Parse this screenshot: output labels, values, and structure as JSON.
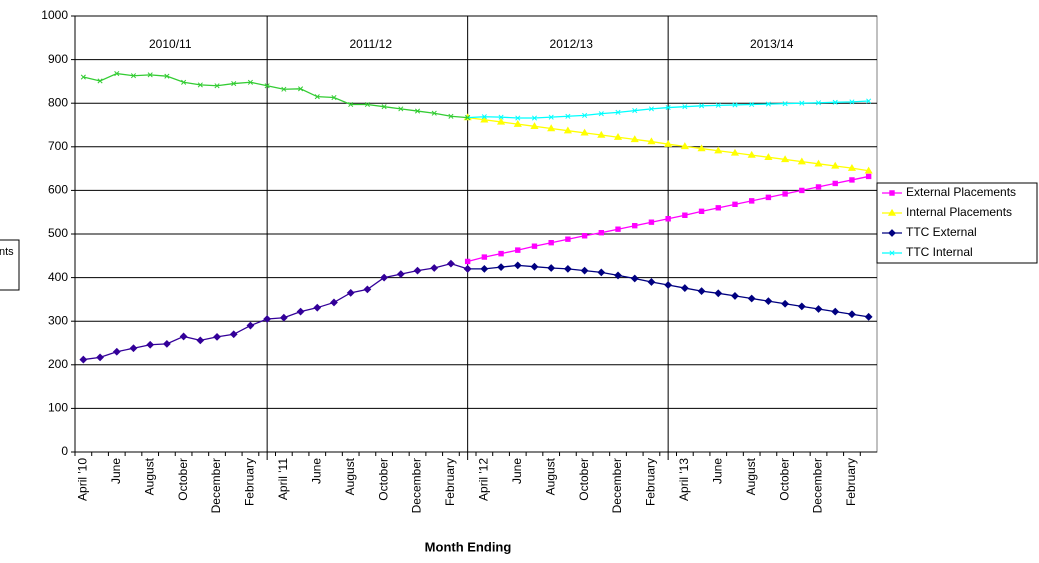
{
  "chart_data": {
    "type": "line",
    "x_label": "Month Ending",
    "categories": [
      "April '10",
      null,
      "June",
      null,
      "August",
      null,
      "October",
      null,
      "December",
      null,
      "February",
      null,
      "April '11",
      null,
      "June",
      null,
      "August",
      null,
      "October",
      null,
      "December",
      null,
      "February",
      null,
      "April '12",
      null,
      "June",
      null,
      "August",
      null,
      "October",
      null,
      "December",
      null,
      "February",
      null,
      "April '13",
      null,
      "June",
      null,
      "August",
      null,
      "October",
      null,
      "December",
      null,
      "February",
      null
    ],
    "periods": [
      "2010/11",
      "2011/12",
      "2012/13",
      "2013/14"
    ],
    "legend_fragment": "nts",
    "ylim": [
      0,
      1000
    ],
    "yticks": [
      0,
      100,
      200,
      300,
      400,
      500,
      600,
      700,
      800,
      900,
      1000
    ],
    "grid": true,
    "legend": "right",
    "series": [
      {
        "name": "External Placements",
        "color": "#ff00ff",
        "marker": "square",
        "values": [
          null,
          null,
          null,
          null,
          null,
          null,
          null,
          null,
          null,
          null,
          null,
          null,
          null,
          null,
          null,
          null,
          null,
          null,
          null,
          null,
          null,
          null,
          null,
          437,
          447,
          455,
          463,
          472,
          480,
          488,
          496,
          503,
          511,
          519,
          527,
          535,
          543,
          552,
          560,
          568,
          576,
          584,
          592,
          600,
          608,
          616,
          624,
          632
        ]
      },
      {
        "name": "Internal Placements",
        "color": "#ffff00",
        "marker": "triangle",
        "values": [
          null,
          null,
          null,
          null,
          null,
          null,
          null,
          null,
          null,
          null,
          null,
          null,
          null,
          null,
          null,
          null,
          null,
          null,
          null,
          null,
          null,
          null,
          null,
          767,
          762,
          757,
          752,
          747,
          742,
          737,
          732,
          727,
          722,
          717,
          712,
          706,
          701,
          696,
          691,
          686,
          681,
          676,
          671,
          666,
          661,
          656,
          651,
          645
        ]
      },
      {
        "name": "TTC External",
        "color": "#000080",
        "marker": "diamond",
        "values": [
          null,
          null,
          null,
          null,
          null,
          null,
          null,
          null,
          null,
          null,
          null,
          null,
          null,
          null,
          null,
          null,
          null,
          null,
          null,
          null,
          null,
          null,
          null,
          420,
          420,
          424,
          428,
          425,
          422,
          420,
          416,
          412,
          405,
          398,
          390,
          383,
          376,
          369,
          364,
          358,
          352,
          346,
          340,
          334,
          328,
          322,
          316,
          310
        ]
      },
      {
        "name": "TTC Internal",
        "color": "#00ffff",
        "marker": "cross",
        "values": [
          null,
          null,
          null,
          null,
          null,
          null,
          null,
          null,
          null,
          null,
          null,
          null,
          null,
          null,
          null,
          null,
          null,
          null,
          null,
          null,
          null,
          null,
          null,
          767,
          769,
          768,
          766,
          766,
          768,
          770,
          772,
          776,
          779,
          783,
          787,
          790,
          792,
          794,
          795,
          796,
          797,
          798,
          799,
          800,
          801,
          802,
          803,
          805
        ]
      },
      {
        "color": "#33cc33",
        "marker": "cross",
        "values": [
          860,
          851,
          868,
          863,
          865,
          862,
          848,
          842,
          840,
          845,
          848,
          840,
          832,
          833,
          815,
          813,
          797,
          797,
          792,
          787,
          782,
          777,
          770,
          767,
          null,
          null,
          null,
          null,
          null,
          null,
          null,
          null,
          null,
          null,
          null,
          null,
          null,
          null,
          null,
          null,
          null,
          null,
          null,
          null,
          null,
          null,
          null,
          null
        ]
      },
      {
        "color": "#330099",
        "marker": "diamond",
        "values": [
          212,
          217,
          230,
          238,
          246,
          248,
          265,
          256,
          264,
          270,
          290,
          305,
          308,
          322,
          331,
          343,
          365,
          373,
          400,
          408,
          416,
          422,
          432,
          420,
          null,
          null,
          null,
          null,
          null,
          null,
          null,
          null,
          null,
          null,
          null,
          null,
          null,
          null,
          null,
          null,
          null,
          null,
          null,
          null,
          null,
          null,
          null,
          null
        ]
      }
    ]
  }
}
